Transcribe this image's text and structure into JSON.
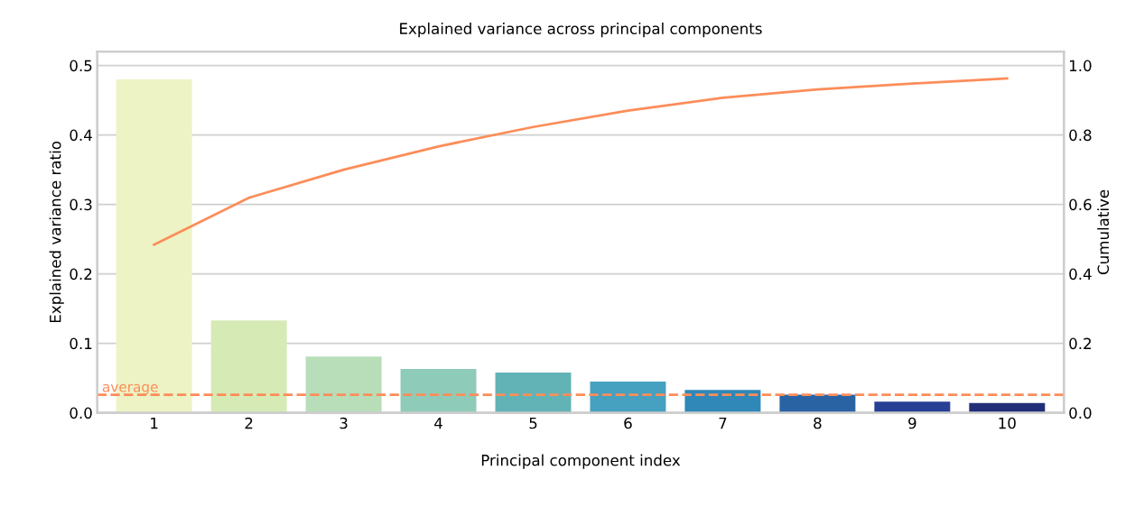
{
  "chart_data": {
    "type": "bar",
    "title": "Explained variance across principal components",
    "xlabel": "Principal component index",
    "ylabel": "Explained variance ratio",
    "y2label": "Cumulative",
    "categories": [
      "1",
      "2",
      "3",
      "4",
      "5",
      "6",
      "7",
      "8",
      "9",
      "10"
    ],
    "series": [
      {
        "colors": [
          "#edf3c4",
          "#d6eab5",
          "#b7ddb9",
          "#8ecbb9",
          "#62b3b6",
          "#46a0c0",
          "#2f88b8",
          "#2a63a4",
          "#273f94",
          "#222f78"
        ],
        "values": [
          0.48,
          0.133,
          0.081,
          0.063,
          0.058,
          0.045,
          0.033,
          0.026,
          0.016,
          0.014
        ]
      },
      {
        "type": "line",
        "axis": "y2",
        "color": "#fc8d59",
        "values": [
          0.484,
          0.619,
          0.7,
          0.767,
          0.823,
          0.87,
          0.907,
          0.931,
          0.948,
          0.963
        ]
      }
    ],
    "ylim": [
      0,
      0.52
    ],
    "yticks": [
      {
        "value": 0,
        "label": "0.0"
      },
      0.1,
      0.2,
      0.3,
      0.4,
      0.5
    ],
    "y2lim": [
      0,
      1.04
    ],
    "y2ticks": [
      {
        "value": 0,
        "label": "0.0"
      },
      0.2,
      0.4,
      0.6,
      0.8,
      {
        "value": 1,
        "label": "1.0"
      }
    ],
    "ref_lines": [
      {
        "axis": "y",
        "value": 0.026,
        "label": "average",
        "color": "#fc8d59",
        "line_style": "dashed"
      }
    ],
    "grid": "y",
    "legend": false,
    "marker": "none",
    "line_style": "solid"
  }
}
